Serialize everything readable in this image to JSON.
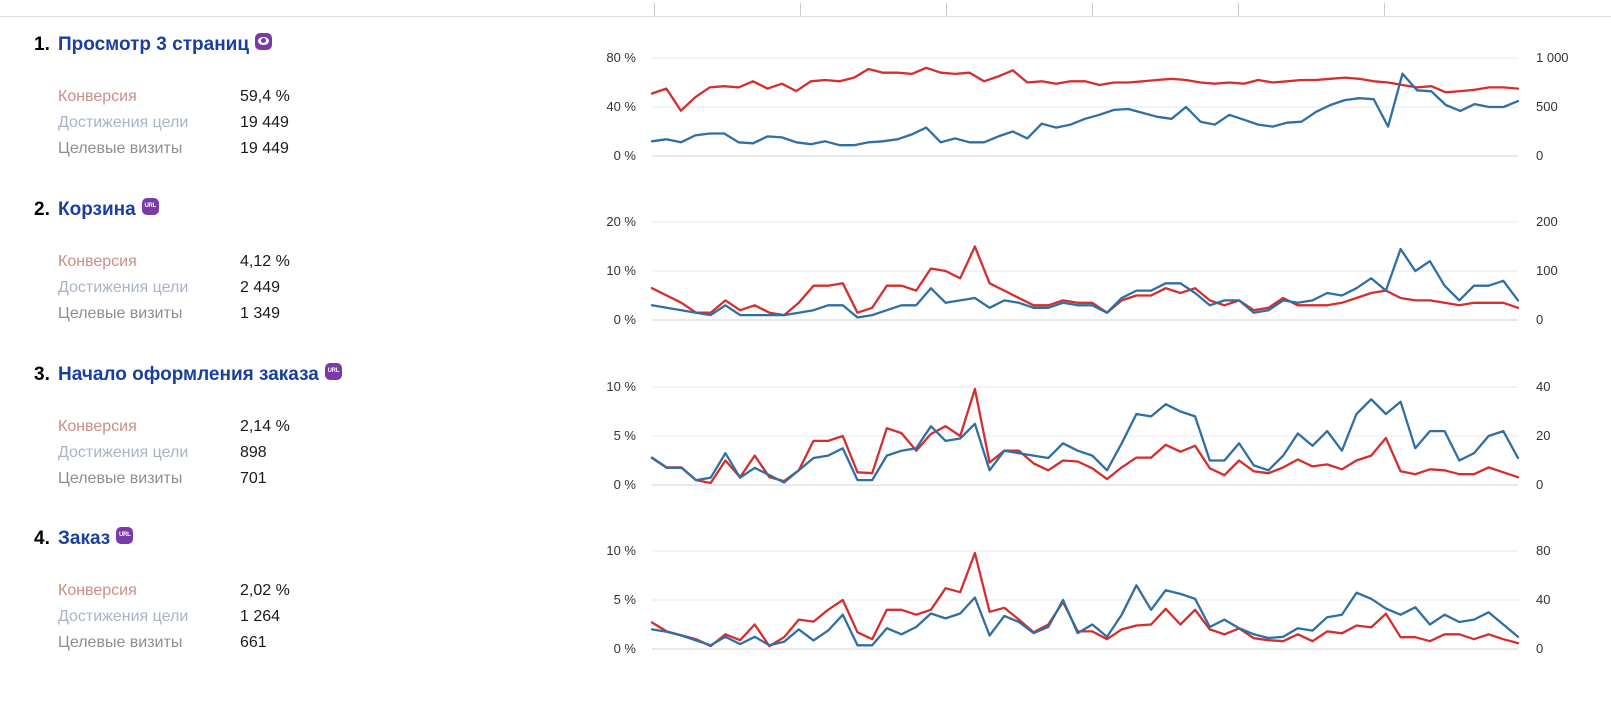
{
  "colors": {
    "title": "#1a3fa0",
    "badge": "#7a3aa8",
    "conversion_line": "#d42e2e",
    "visits_line": "#2f6fa3",
    "label_conversion": "#cc8d87",
    "label_achievements": "#a8b4c6",
    "label_visits": "#8e8e8e"
  },
  "labels": {
    "conversion": "Конверсия",
    "achievements": "Достижения цели",
    "visits": "Целевые визиты"
  },
  "goals": [
    {
      "num": "1.",
      "title": "Просмотр 3 страниц",
      "badge_icon": "eye-icon",
      "badge_text": "",
      "conversion": "59,4 %",
      "achievements": "19 449",
      "visits": "19 449",
      "chart_data": {
        "type": "line",
        "left_axis": {
          "ticks": [
            "80 %",
            "40 %",
            "0 %"
          ],
          "range": [
            0,
            80
          ],
          "unit": "%"
        },
        "right_axis": {
          "ticks": [
            "1 000",
            "500",
            "0"
          ],
          "range": [
            0,
            1000
          ]
        },
        "series": [
          {
            "axis": "left",
            "color": "#d42e2e",
            "values": [
              51,
              55,
              37,
              48,
              56,
              57,
              56,
              61,
              55,
              59,
              53,
              61,
              62,
              61,
              64,
              71,
              68,
              68,
              67,
              72,
              68,
              67,
              68,
              61,
              65,
              70,
              60,
              61,
              59,
              61,
              61,
              58,
              60,
              60,
              61,
              62,
              63,
              62,
              60,
              59,
              60,
              59,
              62,
              60,
              61,
              62,
              62,
              63,
              64,
              63,
              61,
              60,
              58,
              56,
              57,
              52,
              53,
              54,
              56,
              56,
              55
            ]
          },
          {
            "axis": "right",
            "color": "#2f6fa3",
            "values": [
              150,
              170,
              140,
              210,
              230,
              230,
              140,
              130,
              200,
              190,
              140,
              120,
              150,
              110,
              110,
              140,
              150,
              170,
              220,
              290,
              140,
              180,
              140,
              140,
              200,
              250,
              180,
              330,
              290,
              320,
              380,
              420,
              470,
              480,
              440,
              400,
              380,
              500,
              350,
              320,
              420,
              370,
              320,
              300,
              340,
              350,
              450,
              520,
              570,
              590,
              580,
              300,
              840,
              670,
              660,
              520,
              460,
              530,
              500,
              500,
              560
            ]
          }
        ]
      }
    },
    {
      "num": "2.",
      "title": "Корзина",
      "badge_icon": "url-icon",
      "badge_text": "URL",
      "conversion": "4,12 %",
      "achievements": "2 449",
      "visits": "1 349",
      "chart_data": {
        "type": "line",
        "left_axis": {
          "ticks": [
            "20 %",
            "10 %",
            "0 %"
          ],
          "range": [
            0,
            20
          ],
          "unit": "%"
        },
        "right_axis": {
          "ticks": [
            "200",
            "100",
            "0"
          ],
          "range": [
            0,
            200
          ]
        },
        "series": [
          {
            "axis": "left",
            "color": "#d42e2e",
            "values": [
              6.5,
              5,
              3.5,
              1.5,
              1.5,
              4,
              2,
              3,
              1.5,
              1,
              3.5,
              7,
              7,
              7.5,
              1.5,
              2.5,
              7,
              7,
              6,
              10.5,
              10,
              8.5,
              15,
              7.5,
              6,
              4.5,
              3,
              3,
              4,
              3.5,
              3.5,
              1.5,
              4,
              5,
              5,
              6.5,
              5.5,
              6.5,
              4,
              3,
              4,
              2,
              2.5,
              4.5,
              3,
              3,
              3,
              3.5,
              4.5,
              5.5,
              6,
              4.5,
              4,
              4,
              3.5,
              3,
              3.5,
              3.5,
              3.5,
              2.5
            ]
          },
          {
            "axis": "right",
            "color": "#2f6fa3",
            "values": [
              30,
              25,
              20,
              15,
              10,
              30,
              10,
              10,
              10,
              10,
              15,
              20,
              30,
              30,
              5,
              10,
              20,
              30,
              30,
              65,
              35,
              40,
              45,
              25,
              40,
              35,
              25,
              25,
              35,
              30,
              30,
              15,
              45,
              60,
              60,
              75,
              75,
              55,
              30,
              40,
              40,
              15,
              20,
              40,
              35,
              40,
              55,
              50,
              65,
              85,
              60,
              145,
              100,
              120,
              70,
              40,
              70,
              70,
              80,
              40
            ]
          }
        ]
      }
    },
    {
      "num": "3.",
      "title": "Начало оформления заказа",
      "badge_icon": "url-icon",
      "badge_text": "URL",
      "conversion": "2,14 %",
      "achievements": "898",
      "visits": "701",
      "chart_data": {
        "type": "line",
        "left_axis": {
          "ticks": [
            "10 %",
            "5 %",
            "0 %"
          ],
          "range": [
            0,
            10
          ],
          "unit": "%"
        },
        "right_axis": {
          "ticks": [
            "40",
            "20",
            "0"
          ],
          "range": [
            0,
            40
          ]
        },
        "series": [
          {
            "axis": "left",
            "color": "#d42e2e",
            "values": [
              2.8,
              1.8,
              1.8,
              0.5,
              0.2,
              2.5,
              0.8,
              3,
              0.8,
              0.4,
              1.5,
              4.5,
              4.5,
              5,
              1.3,
              1.2,
              5.8,
              5.3,
              3.5,
              5.2,
              6,
              5,
              9.8,
              2.3,
              3.5,
              3.5,
              2.2,
              1.5,
              2.5,
              2.4,
              1.7,
              0.6,
              1.8,
              2.8,
              2.8,
              4.1,
              3.4,
              4,
              1.7,
              1,
              2.5,
              1.4,
              1.2,
              1.8,
              2.6,
              1.9,
              2.1,
              1.6,
              2.5,
              3,
              4.8,
              1.4,
              1.1,
              1.6,
              1.5,
              1.1,
              1.1,
              1.8,
              1.3,
              0.8
            ]
          },
          {
            "axis": "right",
            "color": "#2f6fa3",
            "values": [
              11,
              7,
              7,
              2,
              3,
              13,
              3,
              7,
              4,
              1,
              6,
              11,
              12,
              15,
              2,
              2,
              12,
              14,
              15,
              24,
              18,
              19,
              25,
              6,
              14,
              13,
              12,
              11,
              17,
              14,
              12,
              6,
              17,
              29,
              28,
              33,
              30,
              28,
              10,
              10,
              17,
              8,
              6,
              12,
              21,
              16,
              22,
              14,
              29,
              35,
              29,
              34,
              15,
              22,
              22,
              10,
              13,
              20,
              22,
              11
            ]
          }
        ]
      }
    },
    {
      "num": "4.",
      "title": "Заказ",
      "badge_icon": "url-icon",
      "badge_text": "URL",
      "conversion": "2,02 %",
      "achievements": "1 264",
      "visits": "661",
      "chart_data": {
        "type": "line",
        "left_axis": {
          "ticks": [
            "10 %",
            "5 %",
            "0 %"
          ],
          "range": [
            0,
            10
          ],
          "unit": "%"
        },
        "right_axis": {
          "ticks": [
            "80",
            "40",
            "0"
          ],
          "range": [
            0,
            80
          ]
        },
        "series": [
          {
            "axis": "left",
            "color": "#d42e2e",
            "values": [
              2.7,
              1.8,
              1.4,
              1,
              0.3,
              1.5,
              0.9,
              2.5,
              0.3,
              1.2,
              3,
              2.8,
              4,
              5,
              1.7,
              1,
              4,
              4,
              3.5,
              4,
              6.2,
              5.8,
              9.8,
              3.8,
              4.2,
              3,
              1.7,
              2.5,
              4.8,
              1.8,
              1.8,
              1,
              2,
              2.4,
              2.5,
              4.1,
              2.5,
              4,
              2,
              1.5,
              2.1,
              1.1,
              0.9,
              0.8,
              1.5,
              0.8,
              1.8,
              1.6,
              2.4,
              2.2,
              3.6,
              1.2,
              1.2,
              0.8,
              1.5,
              1.5,
              1,
              1.5,
              1,
              0.6
            ]
          },
          {
            "axis": "right",
            "color": "#2f6fa3",
            "values": [
              16,
              14,
              11,
              7,
              3,
              10,
              4,
              10,
              3,
              6,
              16,
              7,
              15,
              28,
              3,
              3,
              17,
              12,
              18,
              29,
              25,
              29,
              42,
              11,
              27,
              22,
              13,
              18,
              40,
              13,
              20,
              10,
              28,
              52,
              32,
              48,
              45,
              41,
              18,
              24,
              17,
              12,
              9,
              10,
              17,
              15,
              26,
              28,
              46,
              41,
              33,
              28,
              34,
              20,
              28,
              22,
              24,
              30,
              20,
              10
            ]
          }
        ]
      }
    }
  ]
}
